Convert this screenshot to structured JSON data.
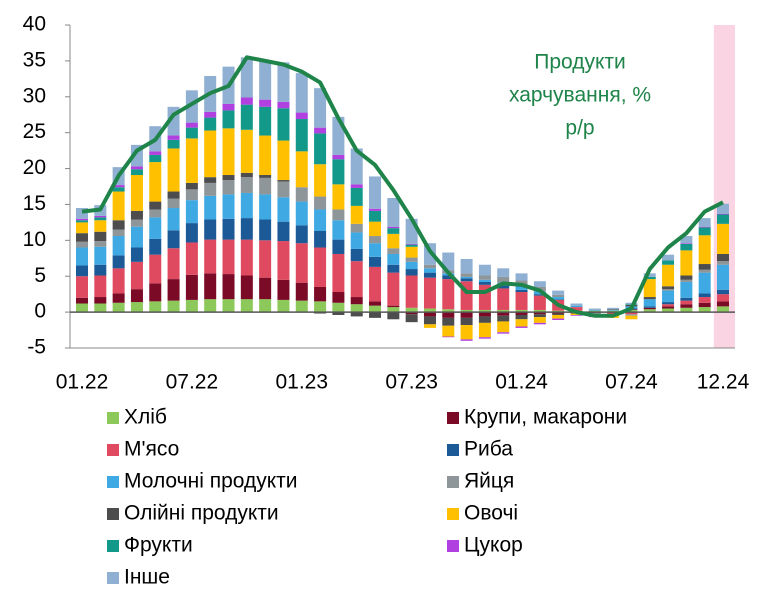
{
  "chart_data": {
    "type": "stacked_bar_line",
    "categories": [
      "01.22",
      null,
      null,
      null,
      null,
      null,
      "07.22",
      null,
      null,
      null,
      null,
      null,
      "01.23",
      null,
      null,
      null,
      null,
      null,
      "07.23",
      null,
      null,
      null,
      null,
      null,
      "01.24",
      null,
      null,
      null,
      null,
      null,
      "07.24",
      null,
      null,
      null,
      null,
      "12.24"
    ],
    "series": [
      {
        "name": "Хліб",
        "color": "#8cc85a",
        "values": [
          1.2,
          1.2,
          1.3,
          1.4,
          1.5,
          1.6,
          1.7,
          1.8,
          1.8,
          1.8,
          1.8,
          1.7,
          1.6,
          1.5,
          1.3,
          1.1,
          0.9,
          0.7,
          0.6,
          0.5,
          0.4,
          0.3,
          0.3,
          0.3,
          0.3,
          0.3,
          0.2,
          0.2,
          0.2,
          0.2,
          0.3,
          0.4,
          0.5,
          0.6,
          0.7,
          0.8
        ]
      },
      {
        "name": "Крупи, макарони",
        "color": "#7a0a26",
        "values": [
          0.8,
          0.9,
          1.3,
          1.8,
          2.5,
          3.0,
          3.5,
          3.6,
          3.5,
          3.3,
          3.0,
          2.8,
          2.5,
          2.0,
          1.5,
          1.0,
          0.6,
          0.2,
          -0.3,
          -0.6,
          -0.8,
          -0.8,
          -0.6,
          -0.5,
          -0.4,
          -0.3,
          -0.2,
          -0.1,
          -0.1,
          0,
          0.1,
          0.2,
          0.3,
          0.5,
          0.6,
          0.7
        ]
      },
      {
        "name": "М'ясо",
        "color": "#e04a60",
        "values": [
          3.0,
          3.0,
          3.5,
          3.8,
          4.0,
          4.3,
          4.5,
          4.7,
          4.8,
          5.0,
          5.2,
          5.4,
          5.5,
          5.5,
          5.3,
          5.0,
          4.8,
          4.6,
          4.5,
          4.3,
          4.2,
          4.0,
          3.5,
          3.0,
          2.5,
          2.0,
          1.5,
          0.5,
          0,
          -0.3,
          -0.3,
          0,
          0.3,
          0.5,
          0.8,
          1.0
        ]
      },
      {
        "name": "Риба",
        "color": "#1b5a96",
        "values": [
          1.5,
          1.5,
          1.8,
          2.0,
          2.2,
          2.5,
          2.7,
          2.8,
          2.9,
          3.0,
          2.9,
          2.7,
          2.5,
          2.3,
          2.0,
          1.7,
          1.4,
          1.1,
          0.9,
          0.7,
          0.5,
          0.4,
          0.4,
          0.4,
          0.3,
          0.2,
          0.1,
          0,
          0,
          0,
          0.1,
          0.2,
          0.3,
          0.4,
          0.5,
          0.6
        ]
      },
      {
        "name": "Молочні продукти",
        "color": "#3fa9e3",
        "values": [
          2.5,
          2.5,
          2.7,
          2.9,
          3.0,
          3.1,
          3.2,
          3.3,
          3.4,
          3.5,
          3.5,
          3.4,
          3.3,
          3.0,
          2.7,
          2.3,
          1.9,
          1.5,
          1.0,
          0.6,
          0.3,
          0.2,
          0.3,
          0.4,
          0.5,
          0.4,
          0.3,
          0.2,
          0.1,
          0.1,
          0.3,
          1.0,
          1.6,
          2.2,
          2.9,
          3.5
        ]
      },
      {
        "name": "Яйця",
        "color": "#8e9699",
        "values": [
          0.8,
          0.8,
          0.9,
          1.0,
          1.1,
          1.3,
          1.5,
          1.8,
          2.0,
          2.2,
          2.3,
          2.2,
          2.0,
          1.8,
          1.5,
          1.2,
          1.0,
          0.8,
          0.6,
          0.5,
          0.4,
          0.5,
          0.6,
          0.8,
          0.8,
          0.6,
          0.3,
          0,
          -0.2,
          -0.2,
          -0.2,
          0,
          0.2,
          0.3,
          0.4,
          0.5
        ]
      },
      {
        "name": "Олійні продукти",
        "color": "#4d4d4d",
        "values": [
          1.2,
          1.3,
          1.3,
          1.2,
          1.1,
          1.0,
          0.9,
          0.8,
          0.7,
          0.6,
          0.4,
          0.2,
          0,
          -0.2,
          -0.4,
          -0.6,
          -0.8,
          -1.0,
          -1.1,
          -1.1,
          -1.1,
          -1.0,
          -0.9,
          -0.8,
          -0.6,
          -0.4,
          -0.2,
          -0.1,
          0,
          0.1,
          0.2,
          0.3,
          0.4,
          0.6,
          0.8,
          1.0
        ]
      },
      {
        "name": "Овочі",
        "color": "#ffc000",
        "values": [
          1.5,
          1.6,
          4.0,
          5.0,
          5.5,
          6.0,
          6.2,
          6.5,
          6.5,
          6.0,
          5.5,
          5.5,
          5.0,
          4.5,
          3.5,
          2.5,
          2.0,
          2.0,
          1.5,
          -0.5,
          -1.5,
          -2.0,
          -2.0,
          -1.5,
          -1.0,
          -0.8,
          -0.5,
          -0.2,
          -0.3,
          -0.3,
          -0.5,
          2.5,
          3.0,
          3.5,
          4.0,
          4.2
        ]
      },
      {
        "name": "Фрукти",
        "color": "#12998a",
        "values": [
          0.3,
          0.4,
          0.6,
          0.8,
          1.0,
          1.2,
          1.5,
          1.8,
          2.5,
          3.5,
          4.0,
          4.5,
          4.5,
          4.3,
          3.5,
          2.5,
          1.5,
          0.8,
          0.3,
          0,
          0,
          0,
          0,
          0,
          0,
          0,
          0,
          0,
          0,
          0,
          0.1,
          0.3,
          0.6,
          0.9,
          1.1,
          1.3
        ]
      },
      {
        "name": "Цукор",
        "color": "#b040e0",
        "values": [
          0.2,
          0.2,
          0.3,
          0.4,
          0.5,
          0.6,
          0.7,
          0.8,
          0.9,
          1.0,
          1.0,
          0.9,
          0.9,
          0.8,
          0.6,
          0.5,
          0.3,
          0.2,
          0.1,
          0,
          -0.1,
          -0.2,
          -0.2,
          -0.2,
          -0.2,
          -0.2,
          -0.2,
          -0.1,
          -0.1,
          0,
          0,
          0,
          0,
          0.1,
          0.1,
          0.1
        ]
      },
      {
        "name": "Інше",
        "color": "#8fb0d2",
        "values": [
          1.5,
          1.5,
          2.5,
          3.0,
          3.5,
          4.0,
          4.5,
          5.0,
          5.2,
          5.6,
          5.5,
          5.5,
          5.5,
          5.5,
          5.3,
          5.0,
          4.5,
          4.0,
          3.5,
          3.0,
          2.5,
          2.0,
          1.5,
          1.2,
          1.0,
          0.8,
          0.6,
          0.3,
          0.2,
          0.2,
          0.2,
          0.5,
          0.8,
          1.0,
          1.2,
          1.4
        ]
      }
    ],
    "line": {
      "color": "#1e8449",
      "values": [
        14.0,
        14.3,
        19.0,
        22.5,
        24.0,
        27.5,
        29.0,
        30.5,
        31.5,
        35.5,
        35.0,
        34.5,
        33.5,
        32.0,
        27.0,
        22.5,
        20.5,
        17.0,
        13.0,
        8.5,
        5.5,
        2.8,
        2.8,
        4.0,
        3.8,
        3.0,
        1.0,
        0.0,
        -0.5,
        -0.5,
        0.5,
        6.0,
        9.0,
        11.0,
        14.0,
        15.3
      ]
    },
    "annotation": [
      "Продукти",
      "харчування, %",
      "р/р"
    ],
    "highlight": {
      "category": 35,
      "color": "#fad4e2"
    },
    "ylim": [
      -5,
      40
    ],
    "yticks": [
      -5,
      0,
      5,
      10,
      15,
      20,
      25,
      30,
      35,
      40
    ]
  }
}
